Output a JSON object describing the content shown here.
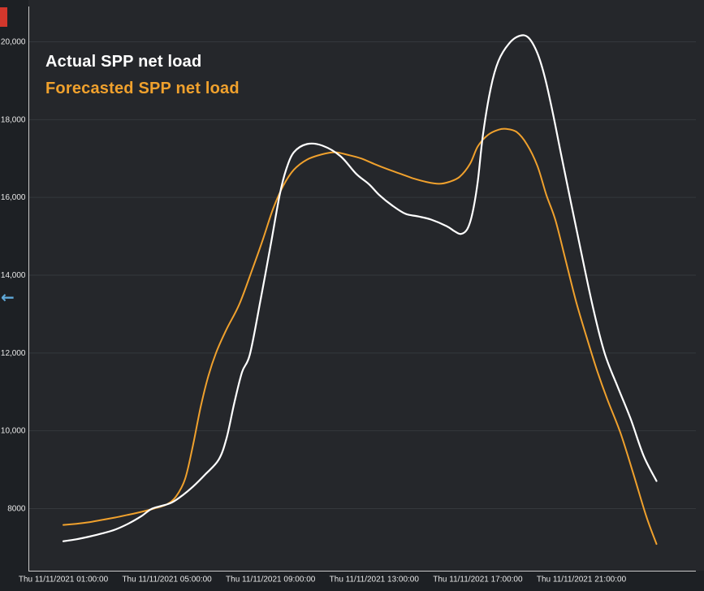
{
  "colors": {
    "outer_bg": "#1d2024",
    "plot_bg": "#25272b",
    "gridline": "#35383d",
    "axis": "#c9c9c9",
    "tick_label": "#e8e8e8",
    "red_edge": "#d2372c",
    "arrow_blue": "#5fa8d8"
  },
  "legend": {
    "items": [
      {
        "label": "Actual SPP net load",
        "color": "#ffffff"
      },
      {
        "label": "Forecasted SPP net load",
        "color": "#f0a12d"
      }
    ]
  },
  "icons": {
    "back_arrow": {
      "name": "back-arrow-icon",
      "glyph": "←"
    }
  },
  "chart_data": {
    "type": "line",
    "title": "",
    "xlabel": "",
    "ylabel": "",
    "grid": "horizontal",
    "legend_position": "top-left-inside",
    "x_axis": {
      "date": "Thu 11/11/2021",
      "tick_hours": [
        1,
        5,
        9,
        13,
        17,
        21
      ],
      "tick_labels": [
        "Thu 11/11/2021 01:00:00",
        "Thu 11/11/2021 05:00:00",
        "Thu 11/11/2021 09:00:00",
        "Thu 11/11/2021 13:00:00",
        "Thu 11/11/2021 17:00:00",
        "Thu 11/11/2021 21:00:00"
      ],
      "data_range_hours": [
        1,
        23.9
      ]
    },
    "y_axis": {
      "ticks": [
        {
          "value": 20000,
          "label": "20,000"
        },
        {
          "value": 18000,
          "label": "18,000"
        },
        {
          "value": 16000,
          "label": "16,000"
        },
        {
          "value": 14000,
          "label": "14,000"
        },
        {
          "value": 12000,
          "label": "12,000"
        },
        {
          "value": 10000,
          "label": "10,000"
        },
        {
          "value": 8000,
          "label": "8000"
        }
      ],
      "approx_visible_range": [
        6400,
        21060
      ]
    },
    "series": [
      {
        "name": "Actual SPP net load",
        "color": "#ffffff",
        "width": 2.2,
        "points": [
          [
            1,
            7150
          ],
          [
            1.5,
            7200
          ],
          [
            2,
            7270
          ],
          [
            2.5,
            7350
          ],
          [
            3,
            7450
          ],
          [
            3.5,
            7600
          ],
          [
            4,
            7790
          ],
          [
            4.4,
            7980
          ],
          [
            4.8,
            8060
          ],
          [
            5.2,
            8150
          ],
          [
            5.6,
            8330
          ],
          [
            6,
            8550
          ],
          [
            6.5,
            8880
          ],
          [
            7,
            9250
          ],
          [
            7.3,
            9800
          ],
          [
            7.6,
            10700
          ],
          [
            7.9,
            11500
          ],
          [
            8.2,
            11950
          ],
          [
            8.6,
            13300
          ],
          [
            9,
            14750
          ],
          [
            9.35,
            16050
          ],
          [
            9.6,
            16700
          ],
          [
            9.9,
            17150
          ],
          [
            10.4,
            17360
          ],
          [
            11,
            17320
          ],
          [
            11.7,
            17050
          ],
          [
            12.3,
            16600
          ],
          [
            12.8,
            16330
          ],
          [
            13.2,
            16050
          ],
          [
            13.7,
            15780
          ],
          [
            14.2,
            15570
          ],
          [
            14.7,
            15500
          ],
          [
            15.2,
            15420
          ],
          [
            15.8,
            15250
          ],
          [
            16.1,
            15120
          ],
          [
            16.35,
            15050
          ],
          [
            16.6,
            15180
          ],
          [
            16.8,
            15600
          ],
          [
            17,
            16400
          ],
          [
            17.2,
            17600
          ],
          [
            17.5,
            18800
          ],
          [
            17.8,
            19500
          ],
          [
            18.2,
            19940
          ],
          [
            18.6,
            20140
          ],
          [
            18.95,
            20100
          ],
          [
            19.3,
            19700
          ],
          [
            19.6,
            19050
          ],
          [
            19.9,
            18150
          ],
          [
            20.2,
            17150
          ],
          [
            20.6,
            15850
          ],
          [
            21,
            14560
          ],
          [
            21.45,
            13150
          ],
          [
            21.9,
            11980
          ],
          [
            22.4,
            11120
          ],
          [
            22.9,
            10300
          ],
          [
            23.4,
            9350
          ],
          [
            23.9,
            8700
          ]
        ]
      },
      {
        "name": "Forecasted SPP net load",
        "color": "#f0a12d",
        "width": 2,
        "points": [
          [
            1,
            7570
          ],
          [
            1.5,
            7600
          ],
          [
            2,
            7640
          ],
          [
            2.5,
            7700
          ],
          [
            3,
            7760
          ],
          [
            3.5,
            7830
          ],
          [
            4,
            7905
          ],
          [
            4.5,
            7990
          ],
          [
            5,
            8100
          ],
          [
            5.35,
            8300
          ],
          [
            5.7,
            8750
          ],
          [
            6,
            9600
          ],
          [
            6.3,
            10600
          ],
          [
            6.6,
            11400
          ],
          [
            6.9,
            12000
          ],
          [
            7.3,
            12600
          ],
          [
            7.8,
            13250
          ],
          [
            8.3,
            14150
          ],
          [
            8.7,
            14900
          ],
          [
            9.1,
            15700
          ],
          [
            9.5,
            16300
          ],
          [
            9.9,
            16700
          ],
          [
            10.4,
            16960
          ],
          [
            11,
            17100
          ],
          [
            11.5,
            17150
          ],
          [
            12,
            17080
          ],
          [
            12.5,
            16990
          ],
          [
            13,
            16850
          ],
          [
            13.5,
            16720
          ],
          [
            14,
            16600
          ],
          [
            14.5,
            16480
          ],
          [
            15,
            16390
          ],
          [
            15.5,
            16340
          ],
          [
            15.9,
            16390
          ],
          [
            16.3,
            16520
          ],
          [
            16.7,
            16850
          ],
          [
            17,
            17300
          ],
          [
            17.4,
            17600
          ],
          [
            17.8,
            17730
          ],
          [
            18.1,
            17750
          ],
          [
            18.5,
            17670
          ],
          [
            18.9,
            17350
          ],
          [
            19.3,
            16800
          ],
          [
            19.65,
            16050
          ],
          [
            20,
            15400
          ],
          [
            20.4,
            14350
          ],
          [
            20.8,
            13300
          ],
          [
            21.2,
            12400
          ],
          [
            21.6,
            11550
          ],
          [
            22,
            10800
          ],
          [
            22.5,
            9950
          ],
          [
            23,
            8900
          ],
          [
            23.5,
            7800
          ],
          [
            23.9,
            7080
          ]
        ]
      }
    ]
  }
}
